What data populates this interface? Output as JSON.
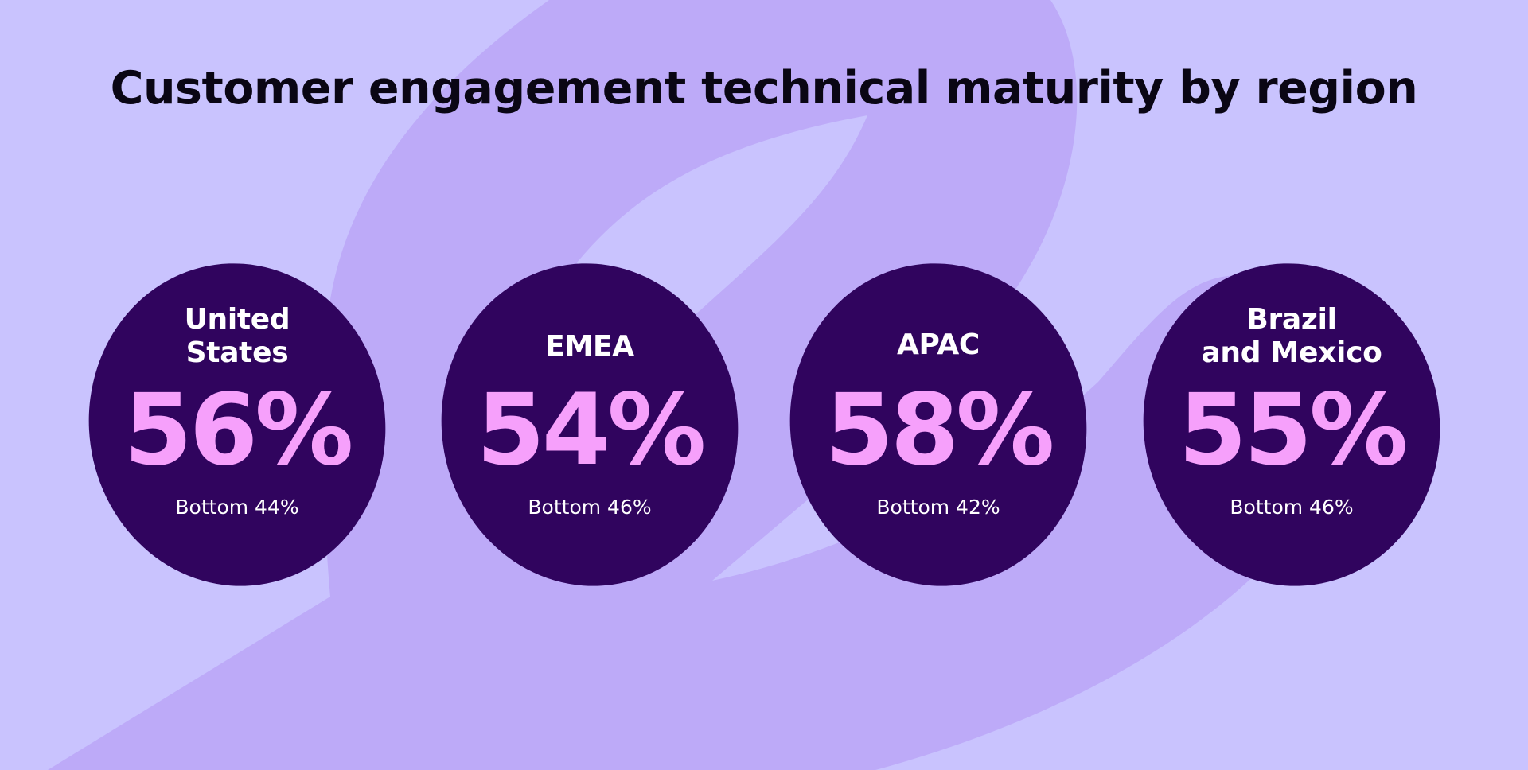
{
  "title": "Customer engagement technical maturity by region",
  "colors": {
    "background": "#c9c3fe",
    "swirl": "#bdaaf8",
    "bubble": "#30045e",
    "value": "#f6a0fb",
    "label": "#ffffff",
    "title": "#0a0614"
  },
  "regions": [
    {
      "name": "United\nStates",
      "value": "56%",
      "bottom": "Bottom 44%"
    },
    {
      "name": "EMEA",
      "value": "54%",
      "bottom": "Bottom 46%"
    },
    {
      "name": "APAC",
      "value": "58%",
      "bottom": "Bottom 42%"
    },
    {
      "name": "Brazil\nand Mexico",
      "value": "55%",
      "bottom": "Bottom 46%"
    }
  ]
}
